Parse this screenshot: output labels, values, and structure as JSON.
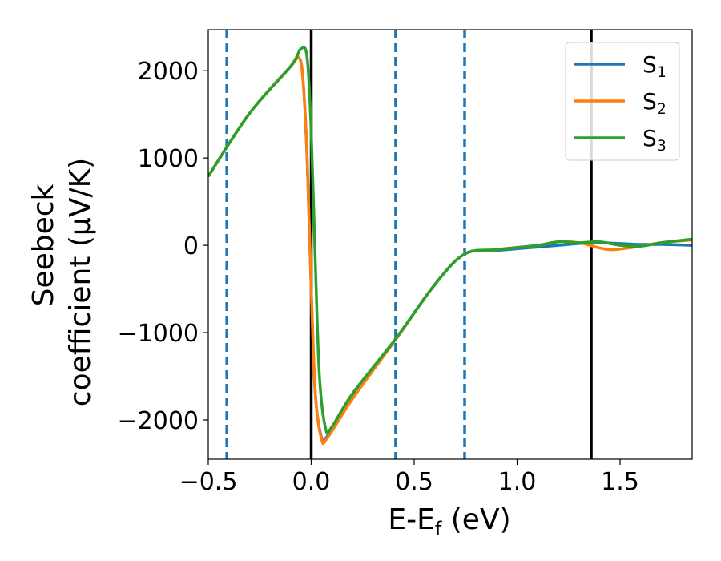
{
  "chart_data": {
    "type": "line",
    "title": "",
    "xlabel": "E-E",
    "xlabel_sub": "f",
    "xlabel_unit": " (eV)",
    "ylabel_line1": "Seebeck",
    "ylabel_line2": "coefficient  (μV/K)",
    "xlim": [
      -0.5,
      1.85
    ],
    "ylim": [
      -2450,
      2470
    ],
    "xticks": [
      -0.5,
      0.0,
      0.5,
      1.0,
      1.5
    ],
    "xtick_labels": [
      "−0.5",
      "0.0",
      "0.5",
      "1.0",
      "1.5"
    ],
    "yticks": [
      -2000,
      -1000,
      0,
      1000,
      2000
    ],
    "ytick_labels": [
      "−2000",
      "−1000",
      "0",
      "1000",
      "2000"
    ],
    "grid": false,
    "legend_placement": "top-right",
    "vlines_dashed": {
      "color": "#1f77b4",
      "x": [
        -0.41,
        0.41,
        0.745
      ]
    },
    "vlines_solid": {
      "color": "#000000",
      "x": [
        0.0,
        1.36
      ]
    },
    "series": [
      {
        "name": "S",
        "name_sub": "1",
        "color": "#1f77b4",
        "x": [
          -0.5,
          -0.3,
          -0.1,
          -0.06,
          -0.04,
          -0.02,
          0.0,
          0.02,
          0.05,
          0.08,
          0.2,
          0.41,
          0.6,
          0.745,
          0.9,
          1.1,
          1.2,
          1.3,
          1.4,
          1.5,
          1.6,
          1.7,
          1.85
        ],
        "y": [
          790,
          1510,
          2050,
          2150,
          1900,
          1000,
          -500,
          -1700,
          -2200,
          -2180,
          -1750,
          -1080,
          -450,
          -100,
          -60,
          -20,
          0,
          20,
          30,
          20,
          10,
          10,
          0
        ]
      },
      {
        "name": "S",
        "name_sub": "2",
        "color": "#ff7f0e",
        "x": [
          -0.5,
          -0.3,
          -0.1,
          -0.06,
          -0.04,
          -0.02,
          0.0,
          0.02,
          0.05,
          0.08,
          0.2,
          0.41,
          0.6,
          0.745,
          0.9,
          1.1,
          1.2,
          1.3,
          1.4,
          1.47,
          1.6,
          1.7,
          1.85
        ],
        "y": [
          790,
          1510,
          2050,
          2150,
          1900,
          1000,
          -500,
          -1700,
          -2220,
          -2200,
          -1760,
          -1080,
          -450,
          -100,
          -50,
          0,
          40,
          30,
          -30,
          -50,
          -10,
          30,
          60
        ]
      },
      {
        "name": "S",
        "name_sub": "3",
        "color": "#2ca02c",
        "x": [
          -0.5,
          -0.3,
          -0.1,
          -0.05,
          -0.02,
          0.0,
          0.02,
          0.04,
          0.07,
          0.1,
          0.2,
          0.41,
          0.6,
          0.745,
          0.9,
          1.1,
          1.2,
          1.3,
          1.4,
          1.5,
          1.6,
          1.7,
          1.85
        ],
        "y": [
          790,
          1510,
          2050,
          2250,
          2150,
          1300,
          -200,
          -1500,
          -2100,
          -2080,
          -1700,
          -1070,
          -450,
          -100,
          -50,
          0,
          40,
          30,
          40,
          0,
          -10,
          30,
          70
        ]
      }
    ]
  }
}
